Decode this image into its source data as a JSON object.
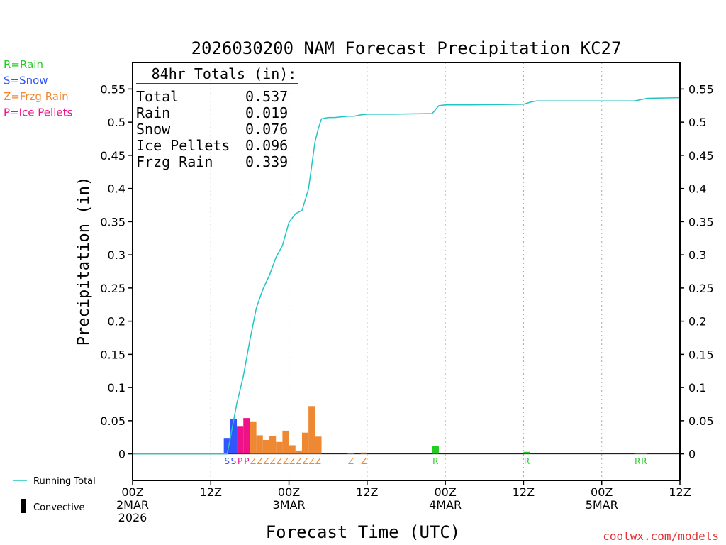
{
  "chart_data": {
    "type": "bar",
    "title": "2026030200 NAM Forecast Precipitation KC27",
    "xlabel": "Forecast Time (UTC)",
    "ylabel": "Precipitation (in)",
    "ylim": [
      -0.04,
      0.59
    ],
    "yticks": [
      0,
      0.05,
      0.1,
      0.15,
      0.2,
      0.25,
      0.3,
      0.35,
      0.4,
      0.45,
      0.5,
      0.55
    ],
    "ytick_labels": [
      "0",
      "0.05",
      "0.1",
      "0.15",
      "0.2",
      "0.25",
      "0.3",
      "0.35",
      "0.4",
      "0.45",
      "0.5",
      "0.55"
    ],
    "xlim_hours": [
      0,
      84
    ],
    "xticks": [
      {
        "hour": 0,
        "lines": [
          "00Z",
          "2MAR",
          "2026"
        ]
      },
      {
        "hour": 12,
        "lines": [
          "12Z"
        ]
      },
      {
        "hour": 24,
        "lines": [
          "00Z",
          "3MAR"
        ]
      },
      {
        "hour": 36,
        "lines": [
          "12Z"
        ]
      },
      {
        "hour": 48,
        "lines": [
          "00Z",
          "4MAR"
        ]
      },
      {
        "hour": 60,
        "lines": [
          "12Z"
        ]
      },
      {
        "hour": 72,
        "lines": [
          "00Z",
          "5MAR"
        ]
      },
      {
        "hour": 84,
        "lines": [
          "12Z"
        ]
      }
    ],
    "legend_types": [
      {
        "label": "R=Rain",
        "color": "#22cc22"
      },
      {
        "label": "S=Snow",
        "color": "#3355ff"
      },
      {
        "label": "Z=Frzg Rain",
        "color": "#ee8833"
      },
      {
        "label": "P=Ice Pellets",
        "color": "#ee1188"
      }
    ],
    "legend_bottom": {
      "running_total": "Running Total",
      "convective": "Convective"
    },
    "totals": {
      "header": "84hr Totals (in):",
      "rows": [
        {
          "label": "Total",
          "value": "0.537"
        },
        {
          "label": "Rain",
          "value": "0.019"
        },
        {
          "label": "Snow",
          "value": "0.076"
        },
        {
          "label": "Ice Pellets",
          "value": "0.096"
        },
        {
          "label": "Frzg Rain",
          "value": "0.339"
        }
      ]
    },
    "colors": {
      "R": "#22cc22",
      "S": "#3355ff",
      "Z": "#ee8833",
      "P": "#ee1188",
      "line": "#22c4c4",
      "grid": "#aaaaaa"
    },
    "bars": [
      {
        "hour": 15,
        "type": "S",
        "value": 0.024
      },
      {
        "hour": 16,
        "type": "S",
        "value": 0.052
      },
      {
        "hour": 17,
        "type": "P",
        "value": 0.041
      },
      {
        "hour": 18,
        "type": "P",
        "value": 0.054
      },
      {
        "hour": 19,
        "type": "Z",
        "value": 0.049
      },
      {
        "hour": 20,
        "type": "Z",
        "value": 0.028
      },
      {
        "hour": 21,
        "type": "Z",
        "value": 0.021
      },
      {
        "hour": 22,
        "type": "Z",
        "value": 0.027
      },
      {
        "hour": 23,
        "type": "Z",
        "value": 0.018
      },
      {
        "hour": 24,
        "type": "Z",
        "value": 0.035
      },
      {
        "hour": 25,
        "type": "Z",
        "value": 0.013
      },
      {
        "hour": 26,
        "type": "Z",
        "value": 0.005
      },
      {
        "hour": 27,
        "type": "Z",
        "value": 0.032
      },
      {
        "hour": 28,
        "type": "Z",
        "value": 0.072
      },
      {
        "hour": 29,
        "type": "Z",
        "value": 0.026
      },
      {
        "hour": 34,
        "type": "Z",
        "value": 0.001
      },
      {
        "hour": 36,
        "type": "Z",
        "value": 0.002
      },
      {
        "hour": 47,
        "type": "R",
        "value": 0.012
      },
      {
        "hour": 61,
        "type": "R",
        "value": 0.003
      },
      {
        "hour": 78,
        "type": "R",
        "value": 0.001
      },
      {
        "hour": 79,
        "type": "R",
        "value": 0.001
      }
    ],
    "type_markers": [
      {
        "hour": 15,
        "code": "S"
      },
      {
        "hour": 16,
        "code": "S"
      },
      {
        "hour": 17,
        "code": "P"
      },
      {
        "hour": 18,
        "code": "P"
      },
      {
        "hour": 19,
        "code": "Z"
      },
      {
        "hour": 20,
        "code": "Z"
      },
      {
        "hour": 21,
        "code": "Z"
      },
      {
        "hour": 22,
        "code": "Z"
      },
      {
        "hour": 23,
        "code": "Z"
      },
      {
        "hour": 24,
        "code": "Z"
      },
      {
        "hour": 25,
        "code": "Z"
      },
      {
        "hour": 26,
        "code": "Z"
      },
      {
        "hour": 27,
        "code": "Z"
      },
      {
        "hour": 28,
        "code": "Z"
      },
      {
        "hour": 29,
        "code": "Z"
      },
      {
        "hour": 34,
        "code": "Z"
      },
      {
        "hour": 36,
        "code": "Z"
      },
      {
        "hour": 47,
        "code": "R"
      },
      {
        "hour": 61,
        "code": "R"
      },
      {
        "hour": 78,
        "code": "R"
      },
      {
        "hour": 79,
        "code": "R"
      }
    ],
    "running_total": {
      "x": [
        0,
        14.5,
        15,
        16,
        17,
        18,
        19,
        20,
        21,
        22,
        23,
        24,
        25,
        26,
        27,
        28,
        28.5,
        29,
        30,
        31,
        32,
        33,
        34,
        35,
        36,
        40,
        46,
        47,
        48,
        52,
        60,
        61,
        62,
        70,
        77,
        79,
        84
      ],
      "y": [
        0,
        0,
        0.024,
        0.076,
        0.117,
        0.171,
        0.22,
        0.248,
        0.269,
        0.296,
        0.314,
        0.349,
        0.362,
        0.367,
        0.399,
        0.47,
        0.49,
        0.505,
        0.507,
        0.507,
        0.508,
        0.509,
        0.509,
        0.511,
        0.512,
        0.512,
        0.513,
        0.525,
        0.526,
        0.526,
        0.527,
        0.53,
        0.532,
        0.532,
        0.532,
        0.536,
        0.537
      ]
    }
  },
  "watermark": "coolwx.com/models"
}
